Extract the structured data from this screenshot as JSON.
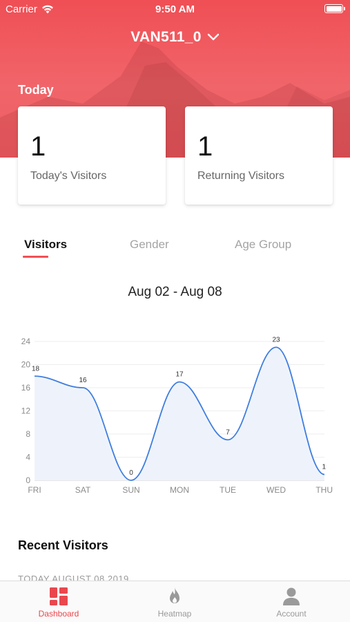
{
  "status_bar": {
    "carrier": "Carrier",
    "time": "9:50 AM"
  },
  "header": {
    "site_name": "VAN511_0",
    "section_label": "Today"
  },
  "cards": [
    {
      "value": "1",
      "label": "Today's Visitors"
    },
    {
      "value": "1",
      "label": "Returning Visitors"
    }
  ],
  "tabs": [
    {
      "label": "Visitors",
      "active": true
    },
    {
      "label": "Gender",
      "active": false
    },
    {
      "label": "Age Group",
      "active": false
    }
  ],
  "date_range": "Aug 02 - Aug 08",
  "chart_data": {
    "type": "area",
    "categories": [
      "FRI",
      "SAT",
      "SUN",
      "MON",
      "TUE",
      "WED",
      "THU"
    ],
    "values": [
      18,
      16,
      0,
      17,
      7,
      23,
      1
    ],
    "y_ticks": [
      0,
      4,
      8,
      12,
      16,
      20,
      24
    ],
    "ylim": [
      0,
      24
    ],
    "line_color": "#3f7ddf",
    "fill_color": "#eef3fb",
    "grid": true
  },
  "recent": {
    "title": "Recent Visitors",
    "partial_text": "TODAY AUGUST 08 2019"
  },
  "bottom_nav": [
    {
      "label": "Dashboard",
      "icon": "dashboard-icon",
      "active": true
    },
    {
      "label": "Heatmap",
      "icon": "flame-icon",
      "active": false
    },
    {
      "label": "Account",
      "icon": "person-icon",
      "active": false
    }
  ],
  "colors": {
    "brand": "#ef4f55",
    "accent_text": "#e9474e",
    "inactive": "#9a9a9a"
  }
}
